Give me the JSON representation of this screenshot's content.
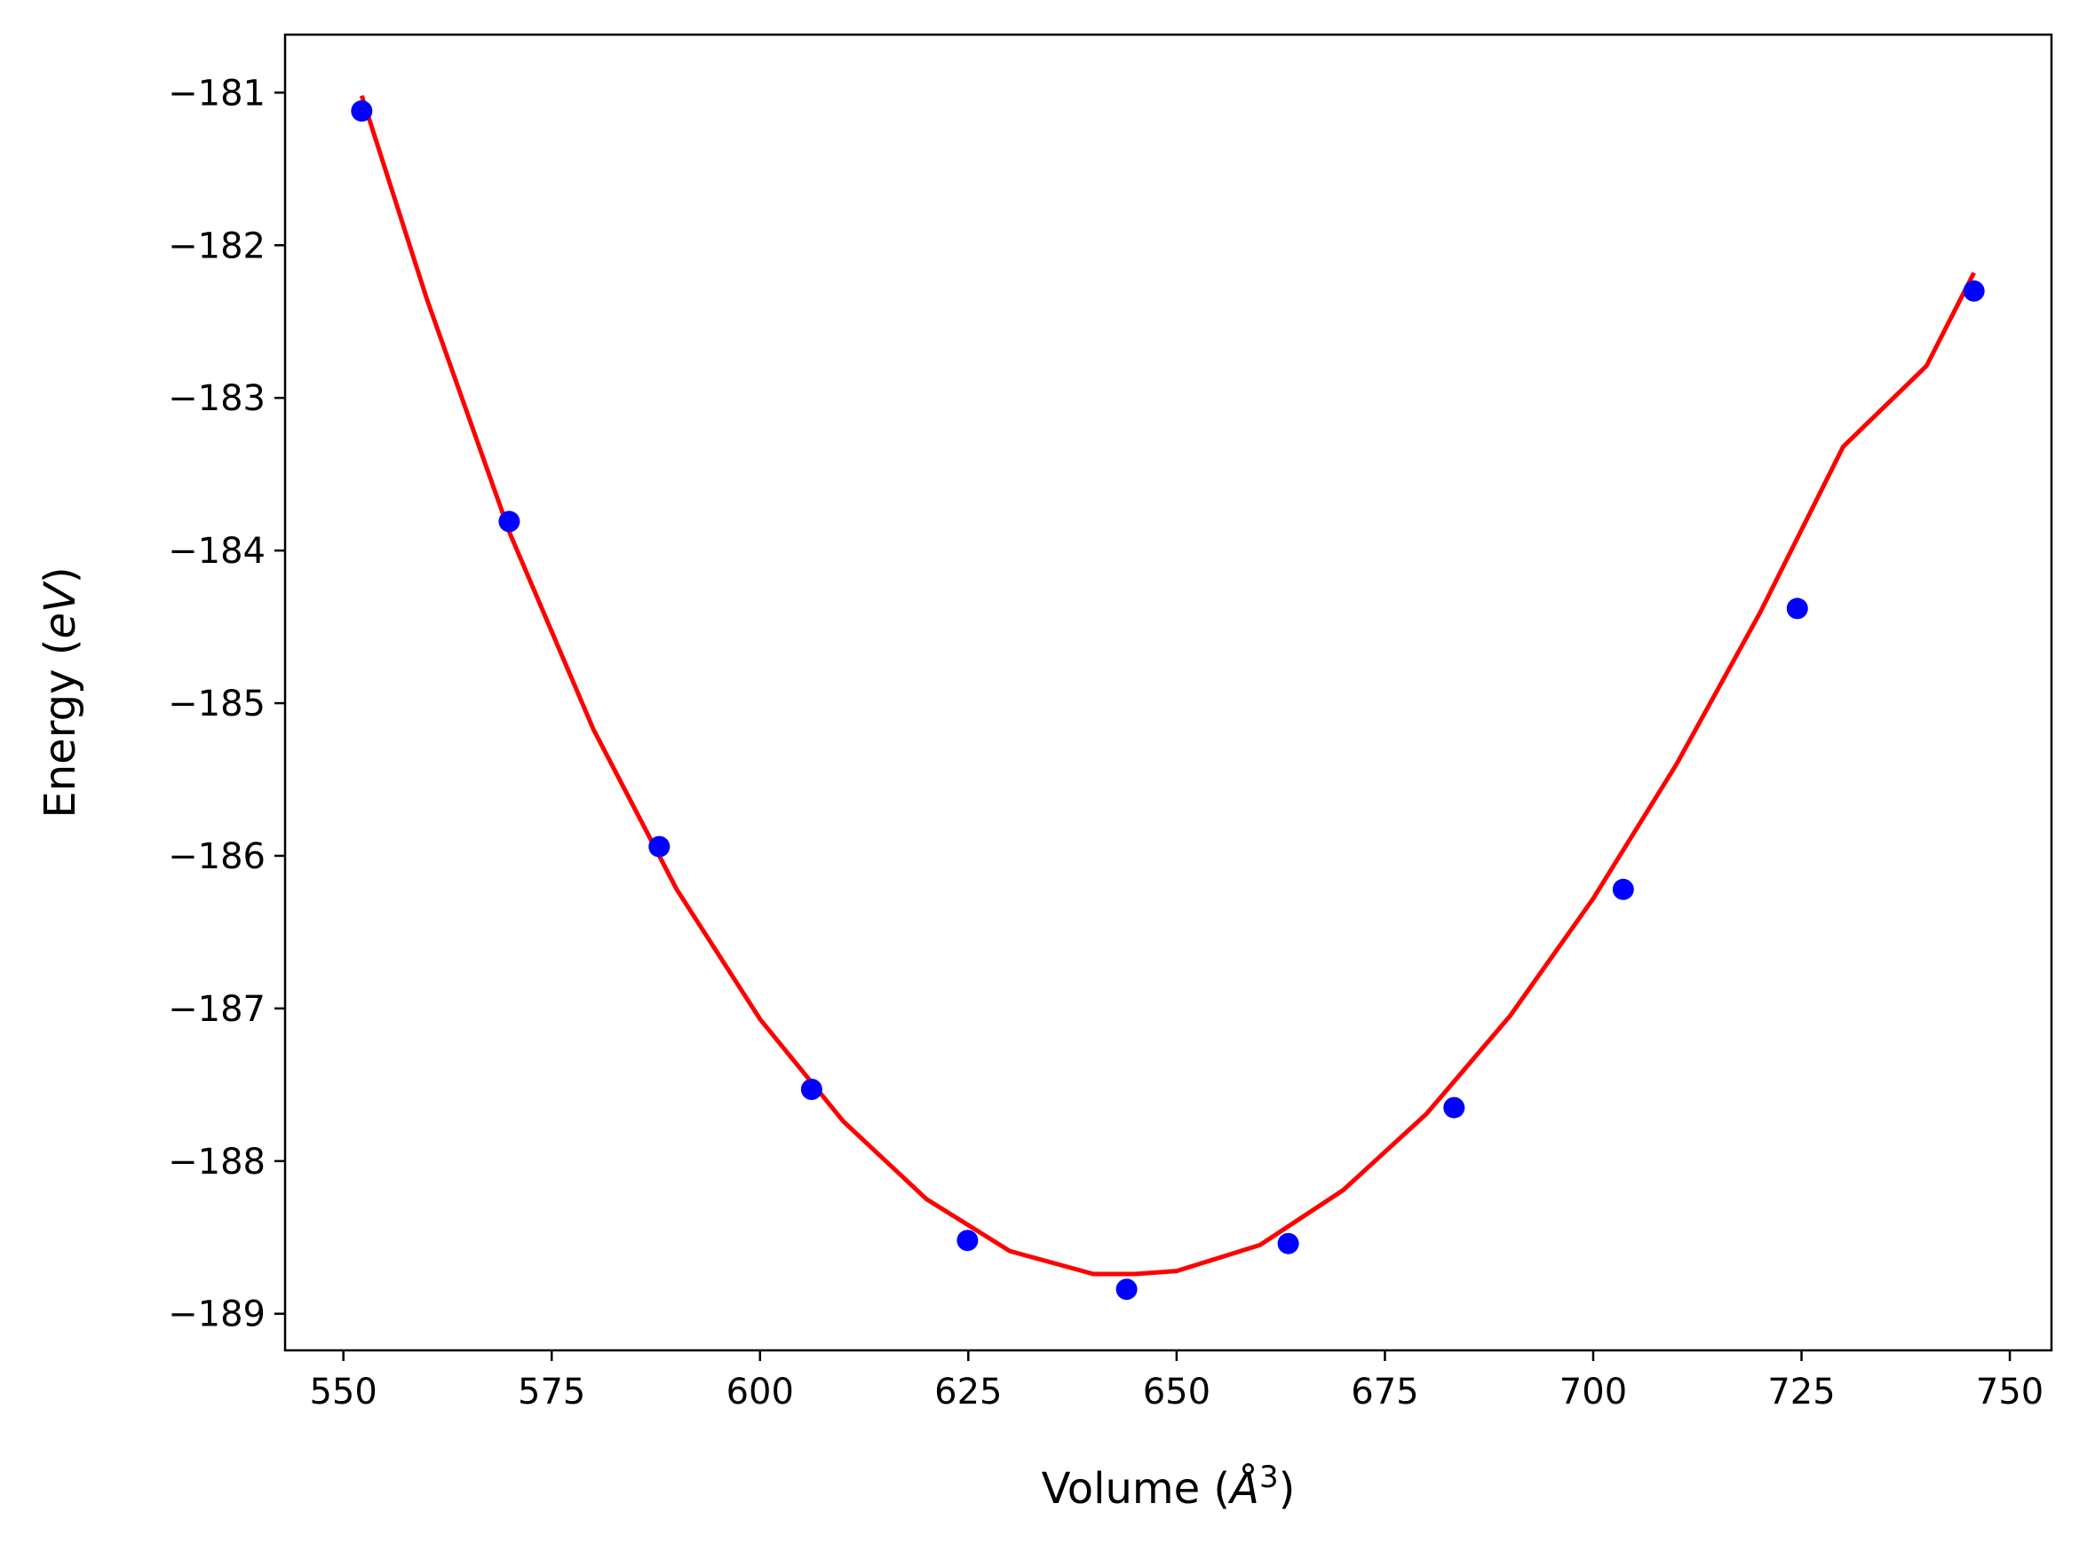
{
  "chart_data": {
    "type": "scatter",
    "xlabel": "Volume (Å³)",
    "xlabel_parts": {
      "main": "Volume (",
      "italic": "Å",
      "sup": "3",
      "close": ")"
    },
    "ylabel": "Energy (eV)",
    "ylabel_parts": {
      "main": "Energy (",
      "italic": "eV",
      "close": ")"
    },
    "xlim": [
      543,
      755
    ],
    "ylim": [
      -189.24,
      -180.62
    ],
    "xticks": [
      550,
      575,
      600,
      625,
      650,
      675,
      700,
      725,
      750
    ],
    "xtick_labels": [
      "550",
      "575",
      "600",
      "625",
      "650",
      "675",
      "700",
      "725",
      "750"
    ],
    "yticks": [
      -181,
      -182,
      -183,
      -184,
      -185,
      -186,
      -187,
      -188,
      -189
    ],
    "ytick_labels": [
      "−181",
      "−182",
      "−183",
      "−184",
      "−185",
      "−186",
      "−187",
      "−188",
      "−189"
    ],
    "grid": false,
    "series": [
      {
        "kind": "points",
        "color": "#0000ff",
        "x": [
          552.2,
          569.9,
          587.9,
          606.2,
          624.9,
          644.0,
          663.4,
          683.3,
          703.6,
          724.5,
          745.7
        ],
        "y": [
          -181.12,
          -183.81,
          -185.94,
          -187.53,
          -188.52,
          -188.84,
          -188.54,
          -187.65,
          -186.22,
          -184.38,
          -182.3
        ]
      },
      {
        "kind": "fit-curve",
        "color": "#ff0000",
        "x": [
          552.2,
          560.0,
          570.0,
          580.0,
          590.0,
          600.0,
          610.0,
          620.0,
          630.0,
          640.0,
          645.0,
          650.0,
          660.0,
          670.0,
          680.0,
          690.0,
          700.0,
          710.0,
          720.0,
          730.0,
          740.0,
          745.7
        ],
        "y": [
          -181.02,
          -182.35,
          -183.89,
          -185.17,
          -186.22,
          -187.07,
          -187.74,
          -188.25,
          -188.59,
          -188.74,
          -188.74,
          -188.72,
          -188.55,
          -188.19,
          -187.69,
          -187.05,
          -186.28,
          -185.4,
          -184.41,
          -183.32,
          -182.79,
          -182.18
        ]
      }
    ]
  }
}
